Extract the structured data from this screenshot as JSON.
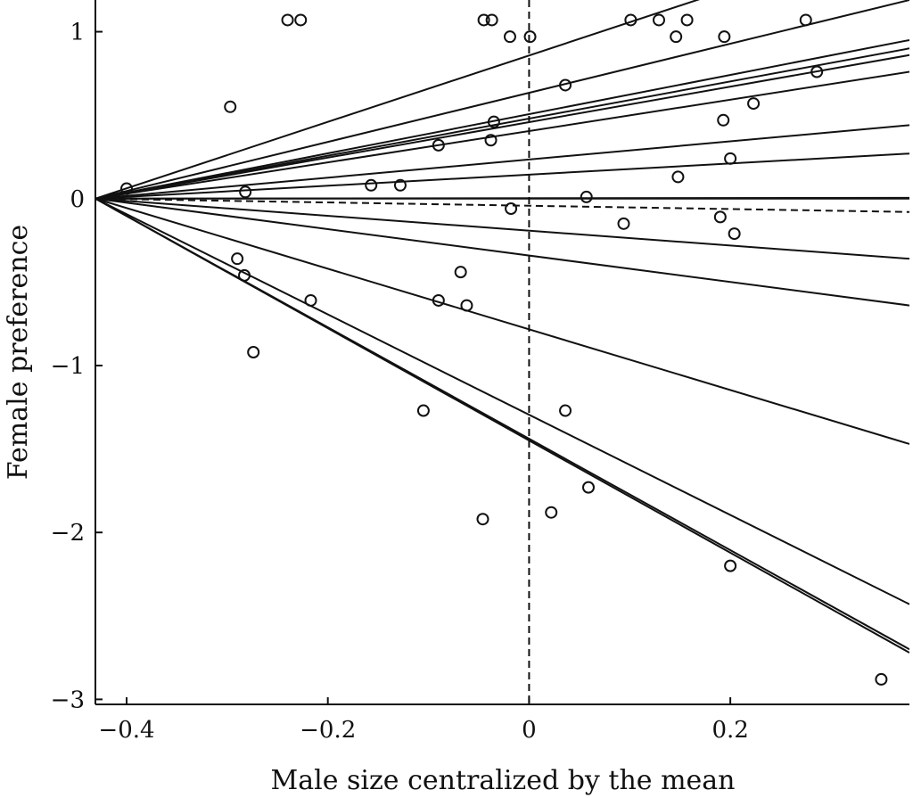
{
  "chart_data": {
    "type": "scatter",
    "title": "",
    "xlabel": "Male size centralized by the mean",
    "ylabel": "Female preference",
    "xlim": [
      -0.431,
      0.378
    ],
    "ylim": [
      -3.03,
      1.19
    ],
    "xticks": [
      -0.4,
      -0.2,
      0,
      0.2
    ],
    "xtick_labels": [
      "−0.4",
      "−0.2",
      "0",
      "0.2"
    ],
    "yticks": [
      1,
      0,
      -1,
      -2,
      -3
    ],
    "ytick_labels": [
      "1",
      "0",
      "−1",
      "−2",
      "−3"
    ],
    "grid": false,
    "reference_lines": {
      "vertical_dashed_x": 0
    },
    "lines": {
      "origin": [
        -0.431,
        0
      ],
      "end_x": 0.378,
      "solid_end_y": [
        1.61,
        1.19,
        0.95,
        0.9,
        0.86,
        0.76,
        0.44,
        0.27,
        0.0,
        0.005,
        -0.36,
        -0.64,
        -1.47,
        -2.43,
        -2.7,
        -2.72
      ],
      "dashed_end_y": [
        -0.08
      ]
    },
    "points": [
      [
        -0.4,
        0.06
      ],
      [
        -0.297,
        0.55
      ],
      [
        -0.282,
        0.04
      ],
      [
        -0.24,
        1.07
      ],
      [
        -0.227,
        1.07
      ],
      [
        -0.29,
        -0.36
      ],
      [
        -0.283,
        -0.46
      ],
      [
        -0.274,
        -0.92
      ],
      [
        -0.217,
        -0.61
      ],
      [
        -0.157,
        0.08
      ],
      [
        -0.128,
        0.08
      ],
      [
        -0.09,
        0.32
      ],
      [
        -0.09,
        -0.61
      ],
      [
        -0.105,
        -1.27
      ],
      [
        -0.068,
        -0.44
      ],
      [
        -0.062,
        -0.64
      ],
      [
        -0.045,
        1.07
      ],
      [
        -0.037,
        1.07
      ],
      [
        -0.035,
        0.46
      ],
      [
        -0.038,
        0.35
      ],
      [
        -0.046,
        -1.92
      ],
      [
        -0.019,
        0.97
      ],
      [
        0.001,
        0.97
      ],
      [
        -0.018,
        -0.06
      ],
      [
        0.036,
        0.68
      ],
      [
        0.036,
        -1.27
      ],
      [
        0.022,
        -1.88
      ],
      [
        0.057,
        0.01
      ],
      [
        0.059,
        -1.73
      ],
      [
        0.101,
        1.07
      ],
      [
        0.129,
        1.07
      ],
      [
        0.146,
        0.97
      ],
      [
        0.157,
        1.07
      ],
      [
        0.194,
        0.97
      ],
      [
        0.148,
        0.13
      ],
      [
        0.193,
        0.47
      ],
      [
        0.2,
        0.24
      ],
      [
        0.223,
        0.57
      ],
      [
        0.094,
        -0.15
      ],
      [
        0.19,
        -0.11
      ],
      [
        0.204,
        -0.21
      ],
      [
        0.2,
        -2.2
      ],
      [
        0.275,
        1.07
      ],
      [
        0.286,
        0.76
      ],
      [
        0.35,
        -2.88
      ]
    ]
  }
}
